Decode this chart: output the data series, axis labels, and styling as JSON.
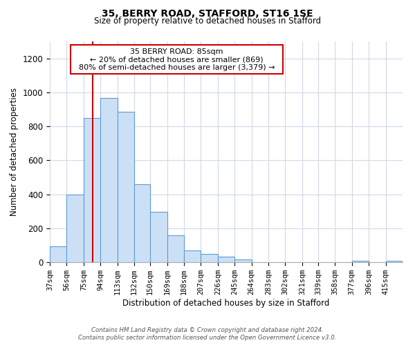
{
  "title": "35, BERRY ROAD, STAFFORD, ST16 1SE",
  "subtitle": "Size of property relative to detached houses in Stafford",
  "xlabel": "Distribution of detached houses by size in Stafford",
  "ylabel": "Number of detached properties",
  "bar_labels": [
    "37sqm",
    "56sqm",
    "75sqm",
    "94sqm",
    "113sqm",
    "132sqm",
    "150sqm",
    "169sqm",
    "188sqm",
    "207sqm",
    "226sqm",
    "245sqm",
    "264sqm",
    "283sqm",
    "302sqm",
    "321sqm",
    "339sqm",
    "358sqm",
    "377sqm",
    "396sqm",
    "415sqm"
  ],
  "bar_values": [
    95,
    400,
    848,
    965,
    885,
    460,
    295,
    160,
    70,
    50,
    33,
    18,
    0,
    0,
    0,
    0,
    0,
    0,
    10,
    0,
    8
  ],
  "bar_color": "#cce0f5",
  "bar_edge_color": "#5b9bd5",
  "property_line_x": 85,
  "bin_edges": [
    37,
    56,
    75,
    94,
    113,
    132,
    150,
    169,
    188,
    207,
    226,
    245,
    264,
    283,
    302,
    321,
    339,
    358,
    377,
    396,
    415,
    434
  ],
  "annotation_title": "35 BERRY ROAD: 85sqm",
  "annotation_line1": "← 20% of detached houses are smaller (869)",
  "annotation_line2": "80% of semi-detached houses are larger (3,379) →",
  "annotation_box_color": "#ffffff",
  "annotation_box_edge_color": "#cc0000",
  "vline_color": "#cc0000",
  "ylim": [
    0,
    1300
  ],
  "yticks": [
    0,
    200,
    400,
    600,
    800,
    1000,
    1200
  ],
  "footer_line1": "Contains HM Land Registry data © Crown copyright and database right 2024.",
  "footer_line2": "Contains public sector information licensed under the Open Government Licence v3.0.",
  "bg_color": "#ffffff",
  "grid_color": "#d0d8e8"
}
